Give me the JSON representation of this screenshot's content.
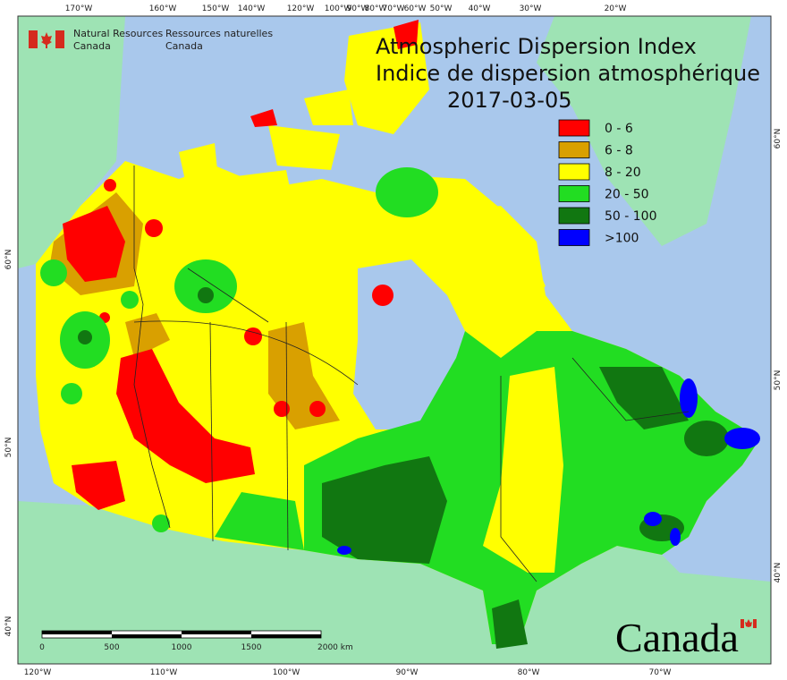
{
  "branding": {
    "en_line1": "Natural Resources",
    "en_line2": "Canada",
    "fr_line1": "Ressources naturelles",
    "fr_line2": "Canada"
  },
  "title": {
    "en": "Atmospheric Dispersion Index",
    "fr": "Indice de dispersion atmosphérique",
    "date": "2017-03-05"
  },
  "legend": [
    {
      "label": "0 - 6",
      "color": "#ff0000"
    },
    {
      "label": "6 - 8",
      "color": "#d9a000"
    },
    {
      "label": "8 - 20",
      "color": "#ffff00"
    },
    {
      "label": "20 - 50",
      "color": "#22dd22"
    },
    {
      "label": "50 - 100",
      "color": "#117711"
    },
    {
      "label": ">100",
      "color": "#0000ff"
    }
  ],
  "graticule": {
    "top": [
      "170°W",
      "160°W",
      "150°W",
      "140°W",
      "120°W",
      "100°W",
      "90°W",
      "80°W",
      "70°W",
      "60°W",
      "50°W",
      "40°W",
      "30°W",
      "20°W"
    ],
    "bottom": [
      "120°W",
      "110°W",
      "100°W",
      "90°W",
      "80°W",
      "70°W"
    ],
    "left": [
      "60°N",
      "50°N",
      "40°N"
    ],
    "right": [
      "60°N",
      "50°N",
      "40°N"
    ]
  },
  "scale_bar": {
    "labels": [
      "0",
      "500",
      "1000",
      "1500",
      "2000 km"
    ]
  },
  "wordmark": "Canada"
}
